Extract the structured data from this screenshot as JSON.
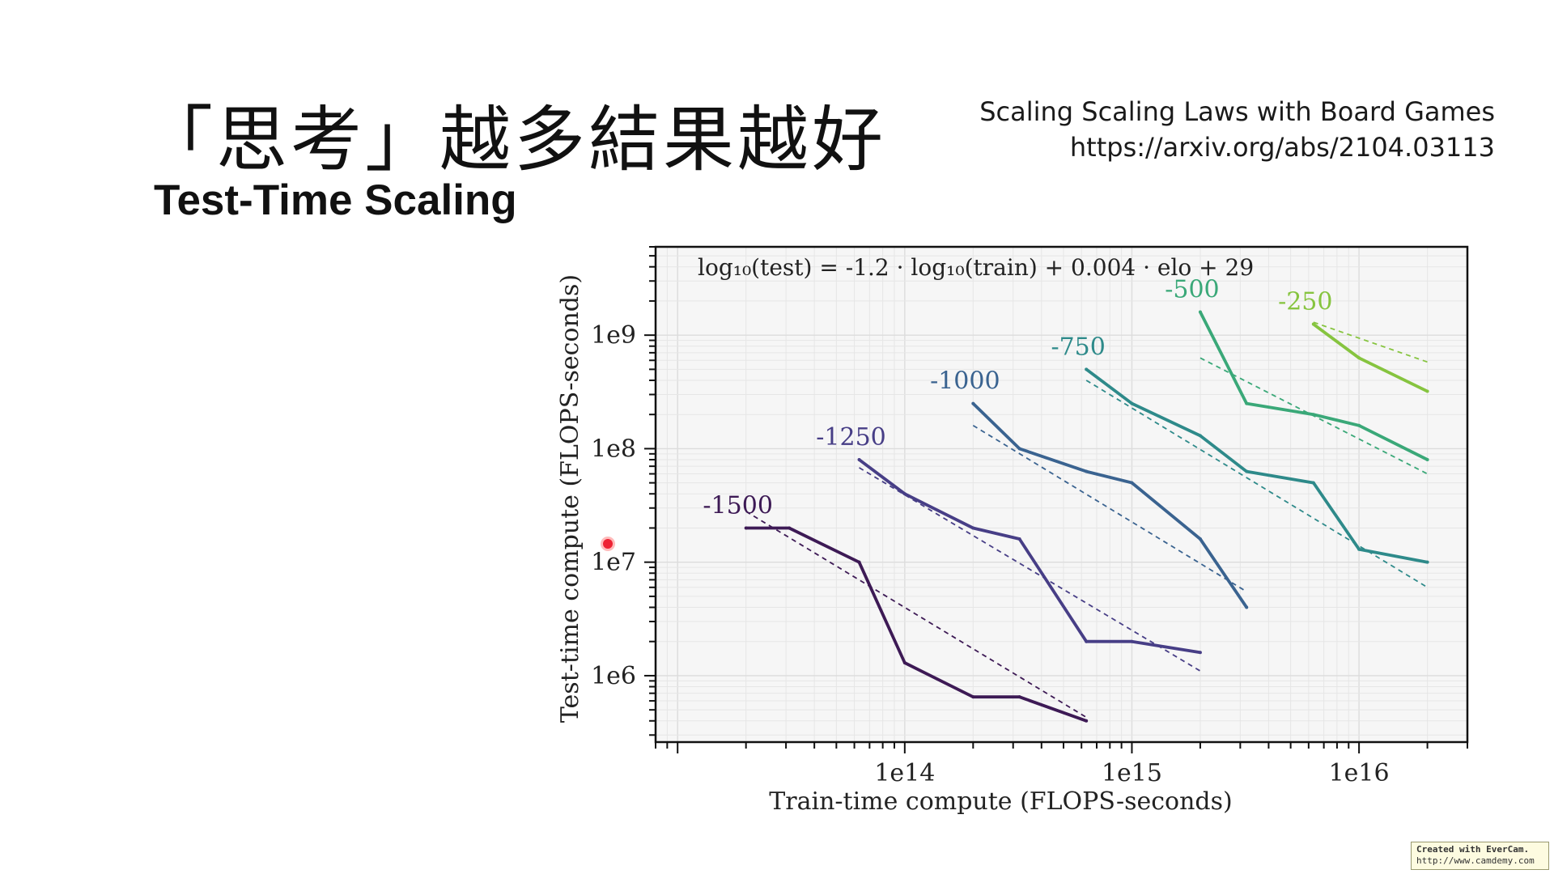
{
  "slide": {
    "title": "「思考」越多結果越好",
    "subtitle": "Test-Time Scaling",
    "reference": {
      "paper": "Scaling Scaling Laws with Board Games",
      "url": "https://arxiv.org/abs/2104.03113"
    },
    "watermark": {
      "line1": "Created with EverCam.",
      "line2": "http://www.camdemy.com"
    }
  },
  "chart_data": {
    "type": "line",
    "annotation": "log₁₀(test) = -1.2 · log₁₀(train) + 0.004 · elo + 29",
    "xlabel": "Train-time compute (FLOPS-seconds)",
    "ylabel": "Test-time compute (FLOPS-seconds)",
    "x_scale": "log",
    "y_scale": "log",
    "xlim": [
      8000000000000.0,
      3e+16
    ],
    "ylim": [
      260000.0,
      6000000000.0
    ],
    "x_ticks": [
      {
        "value": 100000000000000.0,
        "label": "1e14"
      },
      {
        "value": 1000000000000000.0,
        "label": "1e15"
      },
      {
        "value": 1e+16,
        "label": "1e16"
      }
    ],
    "y_ticks": [
      {
        "value": 1000000.0,
        "label": "1e6"
      },
      {
        "value": 10000000.0,
        "label": "1e7"
      },
      {
        "value": 100000000.0,
        "label": "1e8"
      },
      {
        "value": 1000000000.0,
        "label": "1e9"
      }
    ],
    "grid": true,
    "series": [
      {
        "name": "-1500",
        "color": "#3d1a55",
        "x": [
          20000000000000.0,
          31000000000000.0,
          63000000000000.0,
          100000000000000.0,
          200000000000000.0,
          320000000000000.0,
          630000000000000.0
        ],
        "y": [
          20000000.0,
          20000000.0,
          10000000.0,
          1300000.0,
          650000.0,
          650000.0,
          400000.0
        ],
        "fit_x": [
          20000000000000.0,
          630000000000000.0
        ],
        "fit_y": [
          28000000.0,
          430000.0
        ]
      },
      {
        "name": "-1250",
        "color": "#473e86",
        "x": [
          63000000000000.0,
          100000000000000.0,
          200000000000000.0,
          320000000000000.0,
          630000000000000.0,
          1000000000000000.0,
          2000000000000000.0
        ],
        "y": [
          80000000.0,
          40000000.0,
          20000000.0,
          16000000.0,
          2000000.0,
          2000000.0,
          1600000.0
        ],
        "fit_x": [
          63000000000000.0,
          2000000000000000.0
        ],
        "fit_y": [
          68000000.0,
          1100000.0
        ]
      },
      {
        "name": "-1000",
        "color": "#3a6390",
        "x": [
          200000000000000.0,
          320000000000000.0,
          630000000000000.0,
          1000000000000000.0,
          2000000000000000.0,
          3200000000000000.0
        ],
        "y": [
          250000000.0,
          100000000.0,
          63000000.0,
          50000000.0,
          16000000.0,
          4000000.0
        ],
        "fit_x": [
          200000000000000.0,
          3200000000000000.0
        ],
        "fit_y": [
          160000000.0,
          5500000.0
        ]
      },
      {
        "name": "-750",
        "color": "#2e8a8a",
        "x": [
          630000000000000.0,
          1000000000000000.0,
          2000000000000000.0,
          3200000000000000.0,
          6300000000000000.0,
          1e+16,
          2e+16
        ],
        "y": [
          500000000.0,
          250000000.0,
          130000000.0,
          63000000.0,
          50000000.0,
          13000000.0,
          10000000.0
        ],
        "fit_x": [
          630000000000000.0,
          2e+16
        ],
        "fit_y": [
          400000000.0,
          6000000.0
        ]
      },
      {
        "name": "-500",
        "color": "#3aa878",
        "x": [
          2000000000000000.0,
          3200000000000000.0,
          6300000000000000.0,
          1e+16,
          2e+16
        ],
        "y": [
          1600000000.0,
          250000000.0,
          200000000.0,
          160000000.0,
          80000000.0
        ],
        "fit_x": [
          2000000000000000.0,
          2e+16
        ],
        "fit_y": [
          630000000.0,
          60000000.0
        ]
      },
      {
        "name": "-250",
        "color": "#86c43f",
        "x": [
          6300000000000000.0,
          1e+16,
          2e+16
        ],
        "y": [
          1250000000.0,
          630000000.0,
          320000000.0
        ],
        "fit_x": [
          6300000000000000.0,
          2e+16
        ],
        "fit_y": [
          1300000000.0,
          580000000.0
        ]
      }
    ]
  }
}
